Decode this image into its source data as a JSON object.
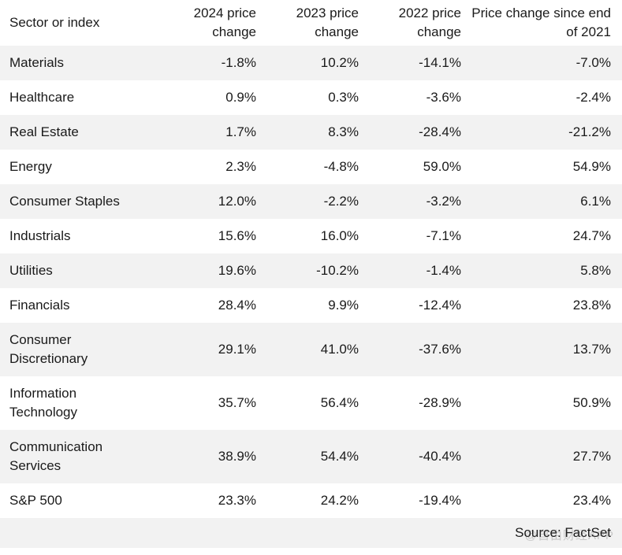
{
  "chart_data": {
    "type": "table",
    "title": "",
    "columns": [
      "Sector or index",
      "2024 price change",
      "2023 price change",
      "2022 price change",
      "Price change since end of 2021"
    ],
    "rows": [
      [
        "Materials",
        "-1.8%",
        "10.2%",
        "-14.1%",
        "-7.0%"
      ],
      [
        "Healthcare",
        "0.9%",
        "0.3%",
        "-3.6%",
        "-2.4%"
      ],
      [
        "Real Estate",
        "1.7%",
        "8.3%",
        "-28.4%",
        "-21.2%"
      ],
      [
        "Energy",
        "2.3%",
        "-4.8%",
        "59.0%",
        "54.9%"
      ],
      [
        "Consumer Staples",
        "12.0%",
        "-2.2%",
        "-3.2%",
        "6.1%"
      ],
      [
        "Industrials",
        "15.6%",
        "16.0%",
        "-7.1%",
        "24.7%"
      ],
      [
        "Utilities",
        "19.6%",
        "-10.2%",
        "-1.4%",
        "5.8%"
      ],
      [
        "Financials",
        "28.4%",
        "9.9%",
        "-12.4%",
        "23.8%"
      ],
      [
        "Consumer Discretionary",
        "29.1%",
        "41.0%",
        "-37.6%",
        "13.7%"
      ],
      [
        "Information Technology",
        "35.7%",
        "56.4%",
        "-28.9%",
        "50.9%"
      ],
      [
        "Communication Services",
        "38.9%",
        "54.4%",
        "-40.4%",
        "27.7%"
      ],
      [
        "S&P 500",
        "23.3%",
        "24.2%",
        "-19.4%",
        "23.4%"
      ]
    ],
    "layout": {
      "stripe_rows": "odd",
      "numeric_alignment": "right",
      "header_rows": 1
    }
  },
  "footer": {
    "source": "Source: FactSet"
  },
  "watermark": {
    "text": "@自由财经APP"
  },
  "colors": {
    "stripe": "#f2f2f2",
    "text": "#1a1a1a",
    "background": "#ffffff"
  }
}
